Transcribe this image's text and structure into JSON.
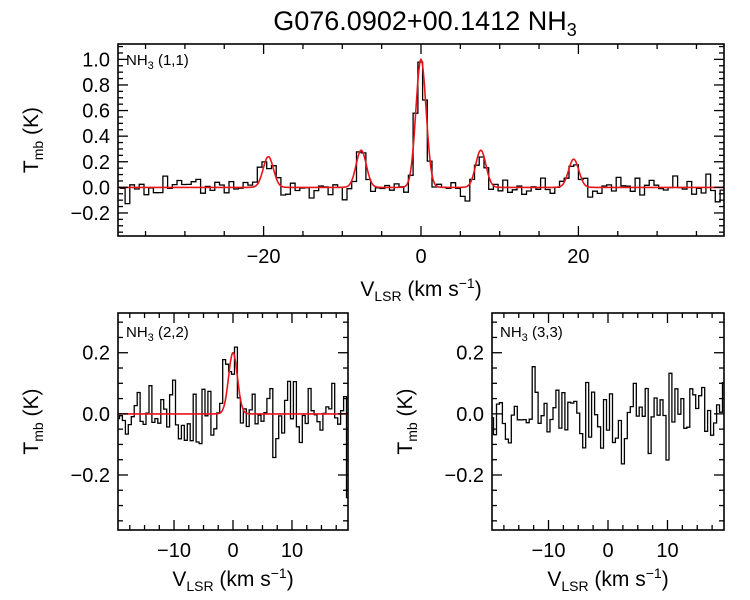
{
  "chart_data": [
    {
      "id": "p11",
      "type": "line",
      "figure_title": "G076.0902+00.1412 NH3",
      "title_main": "G076.0902+00.1412 NH",
      "title_sub": "3",
      "panel_label": {
        "main": "NH",
        "sub": "3",
        "rest": " (1,1)"
      },
      "xlabel": {
        "main": "V",
        "sub": "LSR",
        "rest": " (km s",
        "sup": "−1",
        "close": ")"
      },
      "ylabel": {
        "main": "T",
        "sub": "mb",
        "rest": " (K)"
      },
      "xlim": [
        -38.5,
        38.5
      ],
      "ylim": [
        -0.38,
        1.12
      ],
      "xticks": [
        -20,
        0,
        20
      ],
      "xtick_labels": [
        "−20",
        "0",
        "20"
      ],
      "yticks": [
        -0.2,
        0.0,
        0.2,
        0.4,
        0.6,
        0.8,
        1.0
      ],
      "ytick_labels": [
        "−0.2",
        "0.0",
        "0.2",
        "0.4",
        "0.6",
        "0.8",
        "1.0"
      ],
      "noise_rms": 0.045,
      "channel_width": 0.6,
      "series": [
        {
          "name": "observed spectrum",
          "style": "step",
          "color": "#000000"
        },
        {
          "name": "hyperfine fit",
          "style": "line",
          "color": "#e8141b",
          "components": [
            {
              "center": -19.4,
              "amp": 0.24,
              "sigma": 0.65
            },
            {
              "center": -7.6,
              "amp": 0.29,
              "sigma": 0.65
            },
            {
              "center": 0.0,
              "amp": 1.0,
              "sigma": 0.65
            },
            {
              "center": 7.6,
              "amp": 0.29,
              "sigma": 0.65
            },
            {
              "center": 19.4,
              "amp": 0.22,
              "sigma": 0.65
            }
          ]
        }
      ]
    },
    {
      "id": "p22",
      "type": "line",
      "panel_label": {
        "main": "NH",
        "sub": "3",
        "rest": " (2,2)"
      },
      "xlabel": {
        "main": "V",
        "sub": "LSR",
        "rest": " (km s",
        "sup": "−1",
        "close": ")"
      },
      "ylabel": {
        "main": "T",
        "sub": "mb",
        "rest": " (K)"
      },
      "xlim": [
        -19.5,
        19.5
      ],
      "ylim": [
        -0.38,
        0.33
      ],
      "xticks": [
        -10,
        0,
        10
      ],
      "xtick_labels": [
        "−10",
        "0",
        "10"
      ],
      "yticks": [
        -0.2,
        0.0,
        0.2
      ],
      "ytick_labels": [
        "−0.2",
        "0.0",
        "0.2"
      ],
      "noise_rms": 0.06,
      "channel_width": 0.5,
      "series": [
        {
          "name": "observed spectrum",
          "style": "step",
          "color": "#000000"
        },
        {
          "name": "gaussian fit",
          "style": "line",
          "color": "#e8141b",
          "components": [
            {
              "center": 0.0,
              "amp": 0.2,
              "sigma": 0.75
            }
          ]
        }
      ]
    },
    {
      "id": "p33",
      "type": "line",
      "panel_label": {
        "main": "NH",
        "sub": "3",
        "rest": " (3,3)"
      },
      "xlabel": {
        "main": "V",
        "sub": "LSR",
        "rest": " (km s",
        "sup": "−1",
        "close": ")"
      },
      "ylabel": {
        "main": "T",
        "sub": "mb",
        "rest": " (K)"
      },
      "xlim": [
        -19.5,
        19.5
      ],
      "ylim": [
        -0.38,
        0.33
      ],
      "xticks": [
        -10,
        0,
        10
      ],
      "xtick_labels": [
        "−10",
        "0",
        "10"
      ],
      "yticks": [
        -0.2,
        0.0,
        0.2
      ],
      "ytick_labels": [
        "−0.2",
        "0.0",
        "0.2"
      ],
      "noise_rms": 0.06,
      "channel_width": 0.5,
      "series": [
        {
          "name": "observed spectrum",
          "style": "step",
          "color": "#000000"
        }
      ]
    }
  ]
}
